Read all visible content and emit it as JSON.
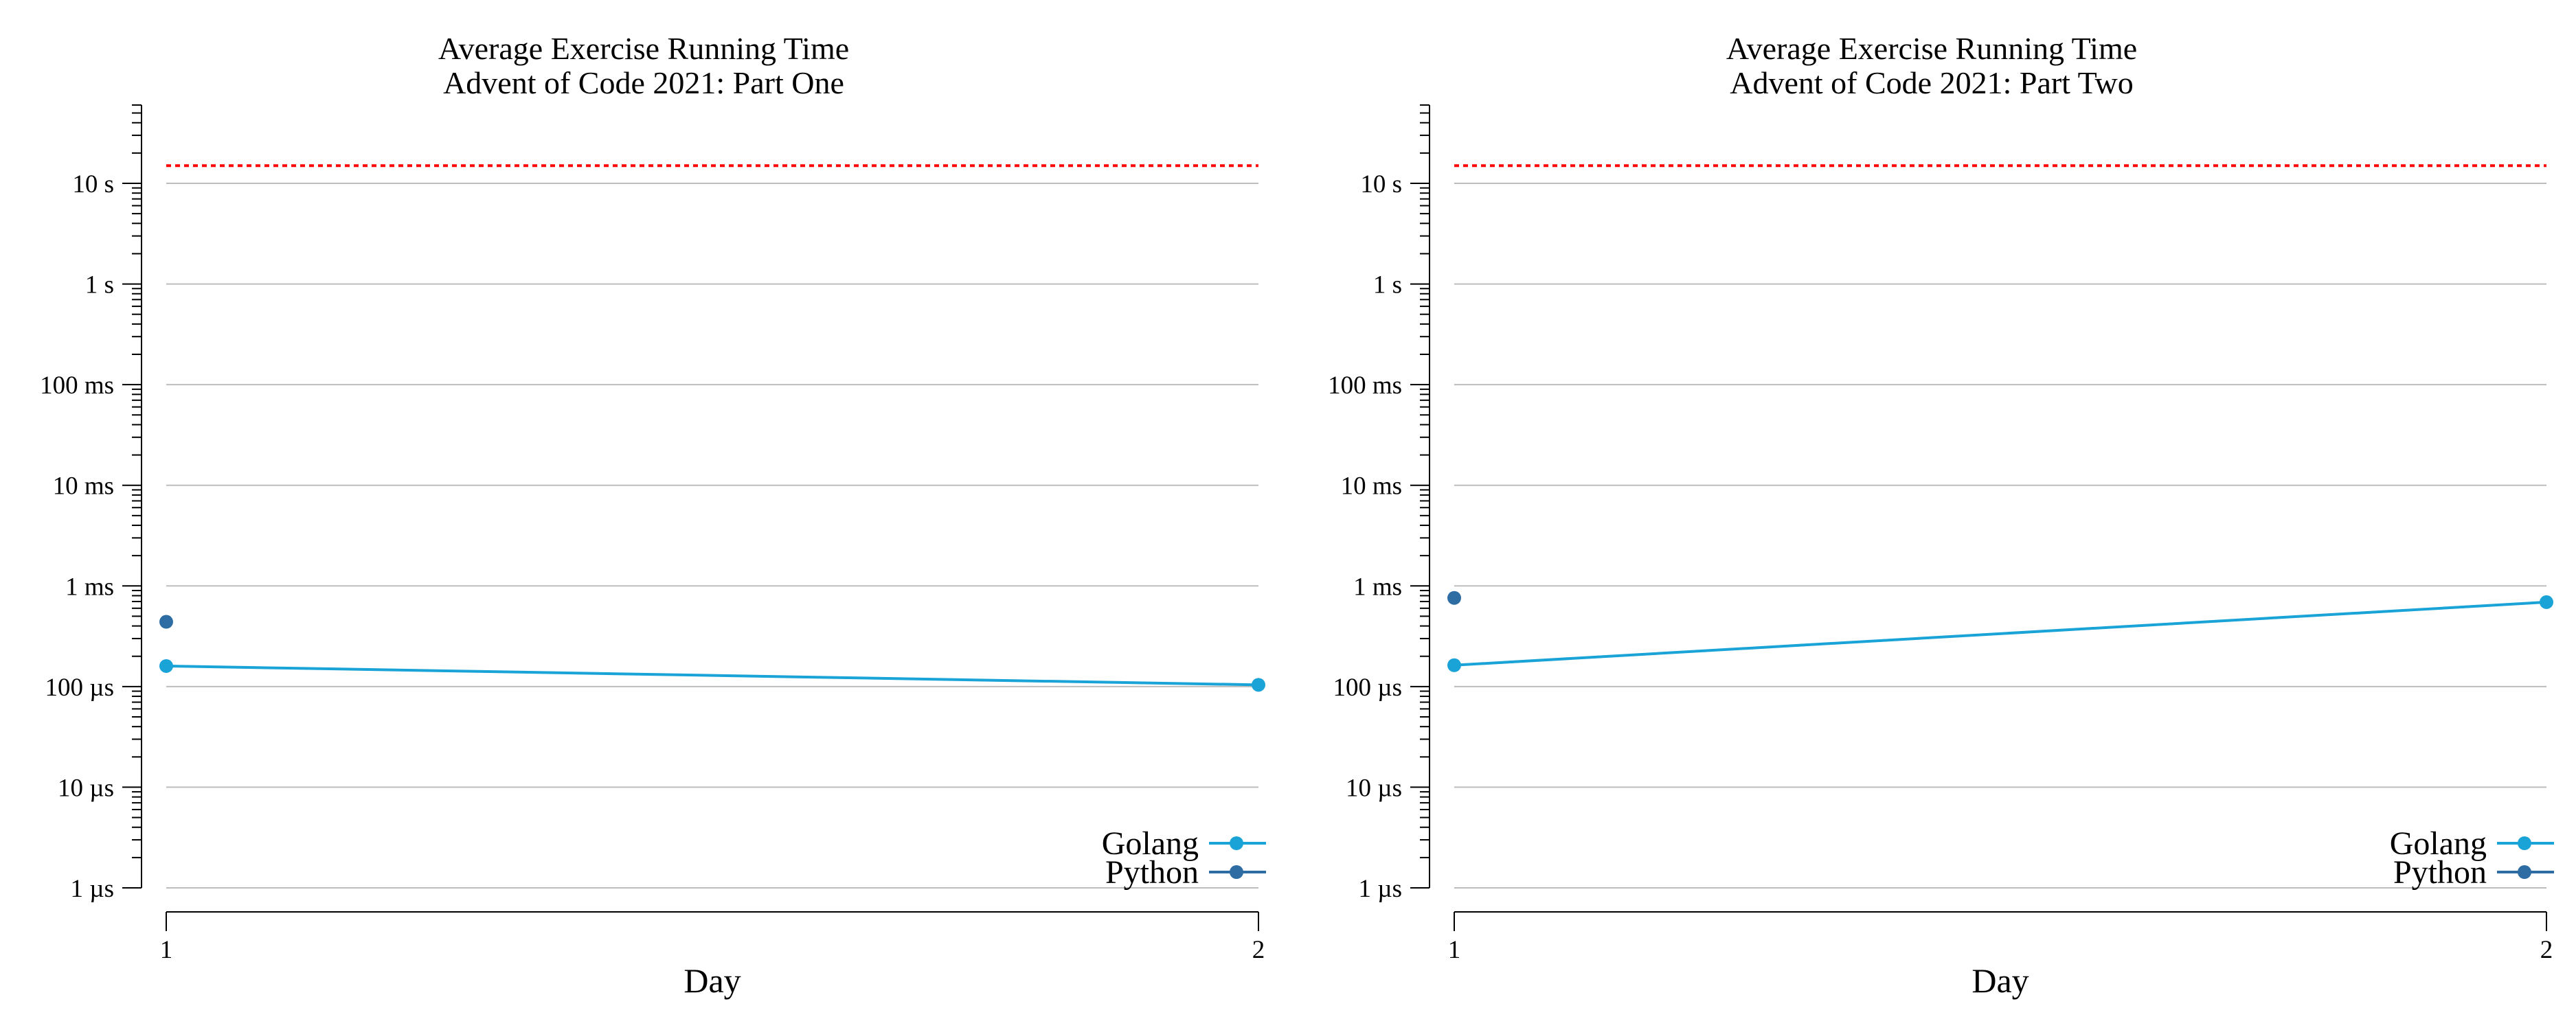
{
  "chart_data": [
    {
      "type": "line",
      "title": [
        "Average Exercise Running Time",
        "Advent of Code 2021: Part One"
      ],
      "xlabel": "Day",
      "ylabel": "",
      "x": [
        1,
        2
      ],
      "x_ticks": [
        "1",
        "2"
      ],
      "y_scale": "log",
      "y_unit": "seconds",
      "ylim": [
        1e-06,
        60
      ],
      "y_ticks": [
        {
          "value": 1e-06,
          "label": "1 µs"
        },
        {
          "value": 1e-05,
          "label": "10 µs"
        },
        {
          "value": 0.0001,
          "label": "100 µs"
        },
        {
          "value": 0.001,
          "label": "1 ms"
        },
        {
          "value": 0.01,
          "label": "10 ms"
        },
        {
          "value": 0.1,
          "label": "100 ms"
        },
        {
          "value": 1,
          "label": "1 s"
        },
        {
          "value": 10,
          "label": "10 s"
        }
      ],
      "grid": true,
      "legend_position": "bottom-right",
      "reference_line": {
        "value": 15,
        "color": "#ff0000",
        "style": "dotted"
      },
      "series": [
        {
          "name": "Golang",
          "color": "#1aa3d6",
          "values": [
            0.00016,
            0.000104
          ]
        },
        {
          "name": "Python",
          "color": "#2e6da4",
          "values": [
            0.00044,
            null
          ]
        }
      ]
    },
    {
      "type": "line",
      "title": [
        "Average Exercise Running Time",
        "Advent of Code 2021: Part Two"
      ],
      "xlabel": "Day",
      "ylabel": "",
      "x": [
        1,
        2
      ],
      "x_ticks": [
        "1",
        "2"
      ],
      "y_scale": "log",
      "y_unit": "seconds",
      "ylim": [
        1e-06,
        60
      ],
      "y_ticks": [
        {
          "value": 1e-06,
          "label": "1 µs"
        },
        {
          "value": 1e-05,
          "label": "10 µs"
        },
        {
          "value": 0.0001,
          "label": "100 µs"
        },
        {
          "value": 0.001,
          "label": "1 ms"
        },
        {
          "value": 0.01,
          "label": "10 ms"
        },
        {
          "value": 0.1,
          "label": "100 ms"
        },
        {
          "value": 1,
          "label": "1 s"
        },
        {
          "value": 10,
          "label": "10 s"
        }
      ],
      "grid": true,
      "legend_position": "bottom-right",
      "reference_line": {
        "value": 15,
        "color": "#ff0000",
        "style": "dotted"
      },
      "series": [
        {
          "name": "Golang",
          "color": "#1aa3d6",
          "values": [
            0.000163,
            0.00069
          ]
        },
        {
          "name": "Python",
          "color": "#2e6da4",
          "values": [
            0.00076,
            null
          ]
        }
      ]
    }
  ]
}
